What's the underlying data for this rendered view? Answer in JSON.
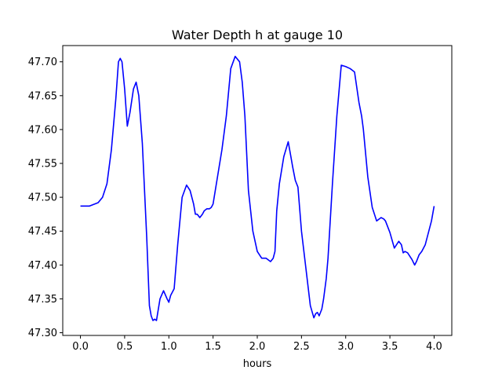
{
  "chart_data": {
    "type": "line",
    "title": "Water Depth h at gauge 10",
    "xlabel": "hours",
    "ylabel": "",
    "xlim": [
      -0.2,
      4.2
    ],
    "ylim": [
      47.296,
      47.724
    ],
    "xticks": [
      0.0,
      0.5,
      1.0,
      1.5,
      2.0,
      2.5,
      3.0,
      3.5,
      4.0
    ],
    "xtick_labels": [
      "0.0",
      "0.5",
      "1.0",
      "1.5",
      "2.0",
      "2.5",
      "3.0",
      "3.5",
      "4.0"
    ],
    "yticks": [
      47.3,
      47.35,
      47.4,
      47.45,
      47.5,
      47.55,
      47.6,
      47.65,
      47.7
    ],
    "ytick_labels": [
      "47.30",
      "47.35",
      "47.40",
      "47.45",
      "47.50",
      "47.55",
      "47.60",
      "47.65",
      "47.70"
    ],
    "grid": false,
    "legend": "none",
    "series": [
      {
        "color": "#0000ff",
        "x": [
          0.0,
          0.1,
          0.2,
          0.25,
          0.3,
          0.35,
          0.4,
          0.43,
          0.45,
          0.47,
          0.5,
          0.53,
          0.56,
          0.6,
          0.63,
          0.66,
          0.7,
          0.75,
          0.78,
          0.8,
          0.82,
          0.84,
          0.86,
          0.9,
          0.94,
          0.98,
          1.0,
          1.02,
          1.06,
          1.1,
          1.15,
          1.2,
          1.24,
          1.28,
          1.3,
          1.32,
          1.35,
          1.38,
          1.4,
          1.43,
          1.46,
          1.48,
          1.5,
          1.55,
          1.6,
          1.65,
          1.7,
          1.75,
          1.8,
          1.83,
          1.86,
          1.9,
          1.95,
          2.0,
          2.05,
          2.1,
          2.15,
          2.18,
          2.2,
          2.22,
          2.25,
          2.3,
          2.35,
          2.38,
          2.4,
          2.43,
          2.46,
          2.5,
          2.55,
          2.6,
          2.64,
          2.66,
          2.68,
          2.7,
          2.73,
          2.75,
          2.78,
          2.8,
          2.85,
          2.9,
          2.95,
          3.0,
          3.05,
          3.07,
          3.1,
          3.15,
          3.18,
          3.2,
          3.25,
          3.3,
          3.35,
          3.4,
          3.43,
          3.45,
          3.5,
          3.55,
          3.6,
          3.63,
          3.65,
          3.67,
          3.7,
          3.75,
          3.78,
          3.8,
          3.83,
          3.86,
          3.9,
          3.94,
          3.97,
          4.0
        ],
        "y": [
          47.487,
          47.487,
          47.492,
          47.5,
          47.52,
          47.57,
          47.645,
          47.7,
          47.705,
          47.7,
          47.66,
          47.605,
          47.625,
          47.66,
          47.67,
          47.65,
          47.58,
          47.44,
          47.34,
          47.325,
          47.318,
          47.32,
          47.318,
          47.35,
          47.362,
          47.35,
          47.345,
          47.355,
          47.365,
          47.43,
          47.5,
          47.518,
          47.51,
          47.49,
          47.475,
          47.475,
          47.47,
          47.475,
          47.48,
          47.483,
          47.483,
          47.485,
          47.49,
          47.53,
          47.57,
          47.62,
          47.69,
          47.708,
          47.7,
          47.67,
          47.62,
          47.51,
          47.45,
          47.42,
          47.41,
          47.41,
          47.405,
          47.41,
          47.42,
          47.48,
          47.52,
          47.56,
          47.582,
          47.56,
          47.545,
          47.525,
          47.515,
          47.45,
          47.395,
          47.34,
          47.322,
          47.328,
          47.33,
          47.325,
          47.335,
          47.35,
          47.38,
          47.41,
          47.52,
          47.62,
          47.695,
          47.693,
          47.69,
          47.688,
          47.685,
          47.64,
          47.62,
          47.6,
          47.53,
          47.485,
          47.465,
          47.47,
          47.468,
          47.465,
          47.448,
          47.425,
          47.435,
          47.43,
          47.418,
          47.42,
          47.418,
          47.408,
          47.4,
          47.405,
          47.415,
          47.42,
          47.43,
          47.45,
          47.465,
          47.487
        ]
      }
    ]
  }
}
